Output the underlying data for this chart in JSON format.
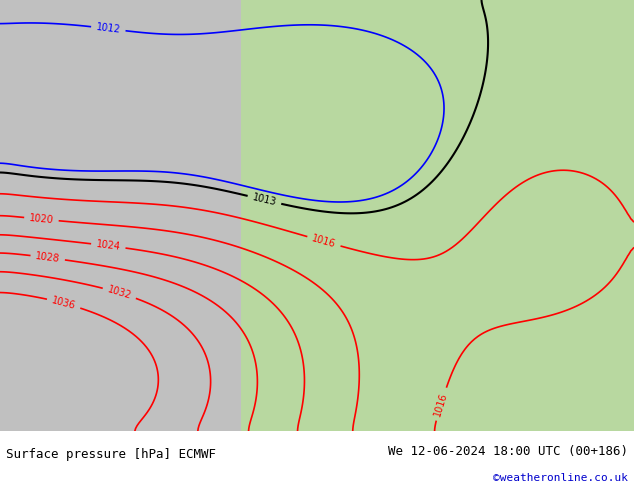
{
  "title_left": "Surface pressure [hPa] ECMWF",
  "title_right": "We 12-06-2024 18:00 UTC (00+186)",
  "copyright": "©weatheronline.co.uk",
  "bg_color": "#d0d0d0",
  "land_color": "#b0d890",
  "sea_color": "#c8c8c8",
  "footer_bg": "#e8e8e8",
  "footer_text_color": "#000000",
  "copyright_color": "#0000cc",
  "isobar_colors": {
    "blue": "#0000ff",
    "red": "#ff0000",
    "black": "#000000",
    "green": "#008000"
  },
  "figsize": [
    6.34,
    4.9
  ],
  "dpi": 100
}
